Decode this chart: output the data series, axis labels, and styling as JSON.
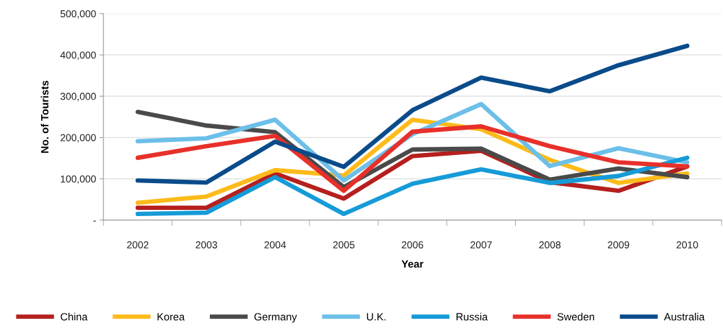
{
  "chart_data": {
    "type": "line",
    "xlabel": "Year",
    "ylabel": "No. of Tourists",
    "categories": [
      "2002",
      "2003",
      "2004",
      "2005",
      "2006",
      "2007",
      "2008",
      "2009",
      "2010"
    ],
    "series": [
      {
        "name": "China",
        "color": "#b5201e",
        "values": [
          30000,
          30000,
          113000,
          52000,
          155000,
          168000,
          92000,
          71000,
          130000
        ]
      },
      {
        "name": "Korea",
        "color": "#fdbb1a",
        "values": [
          42000,
          57000,
          121000,
          108000,
          243000,
          220000,
          146000,
          90000,
          113000
        ]
      },
      {
        "name": "Germany",
        "color": "#4a4a4a",
        "values": [
          262000,
          229000,
          213000,
          80000,
          171000,
          173000,
          98000,
          125000,
          104000
        ]
      },
      {
        "name": "U.K.",
        "color": "#6cbfe8",
        "values": [
          191000,
          198000,
          243000,
          96000,
          208000,
          281000,
          131000,
          174000,
          140000
        ]
      },
      {
        "name": "Russia",
        "color": "#159bd7",
        "values": [
          15000,
          18000,
          104000,
          15000,
          88000,
          123000,
          90000,
          107000,
          151000
        ]
      },
      {
        "name": "Sweden",
        "color": "#e8302a",
        "values": [
          151000,
          179000,
          204000,
          71000,
          214000,
          227000,
          179000,
          140000,
          130000
        ]
      },
      {
        "name": "Australia",
        "color": "#0a4b8a",
        "values": [
          96000,
          91000,
          190000,
          129000,
          266000,
          345000,
          312000,
          375000,
          422000
        ]
      }
    ],
    "ylim": [
      0,
      500000
    ],
    "yticks": [
      {
        "value": 0,
        "label": "-"
      },
      {
        "value": 100000,
        "label": "100,000"
      },
      {
        "value": 200000,
        "label": "200,000"
      },
      {
        "value": 300000,
        "label": "300,000"
      },
      {
        "value": 400000,
        "label": "400,000"
      },
      {
        "value": 500000,
        "label": "500,000"
      }
    ],
    "grid": "y",
    "legend": "bottom",
    "marker": "none",
    "line_style": "solid"
  }
}
